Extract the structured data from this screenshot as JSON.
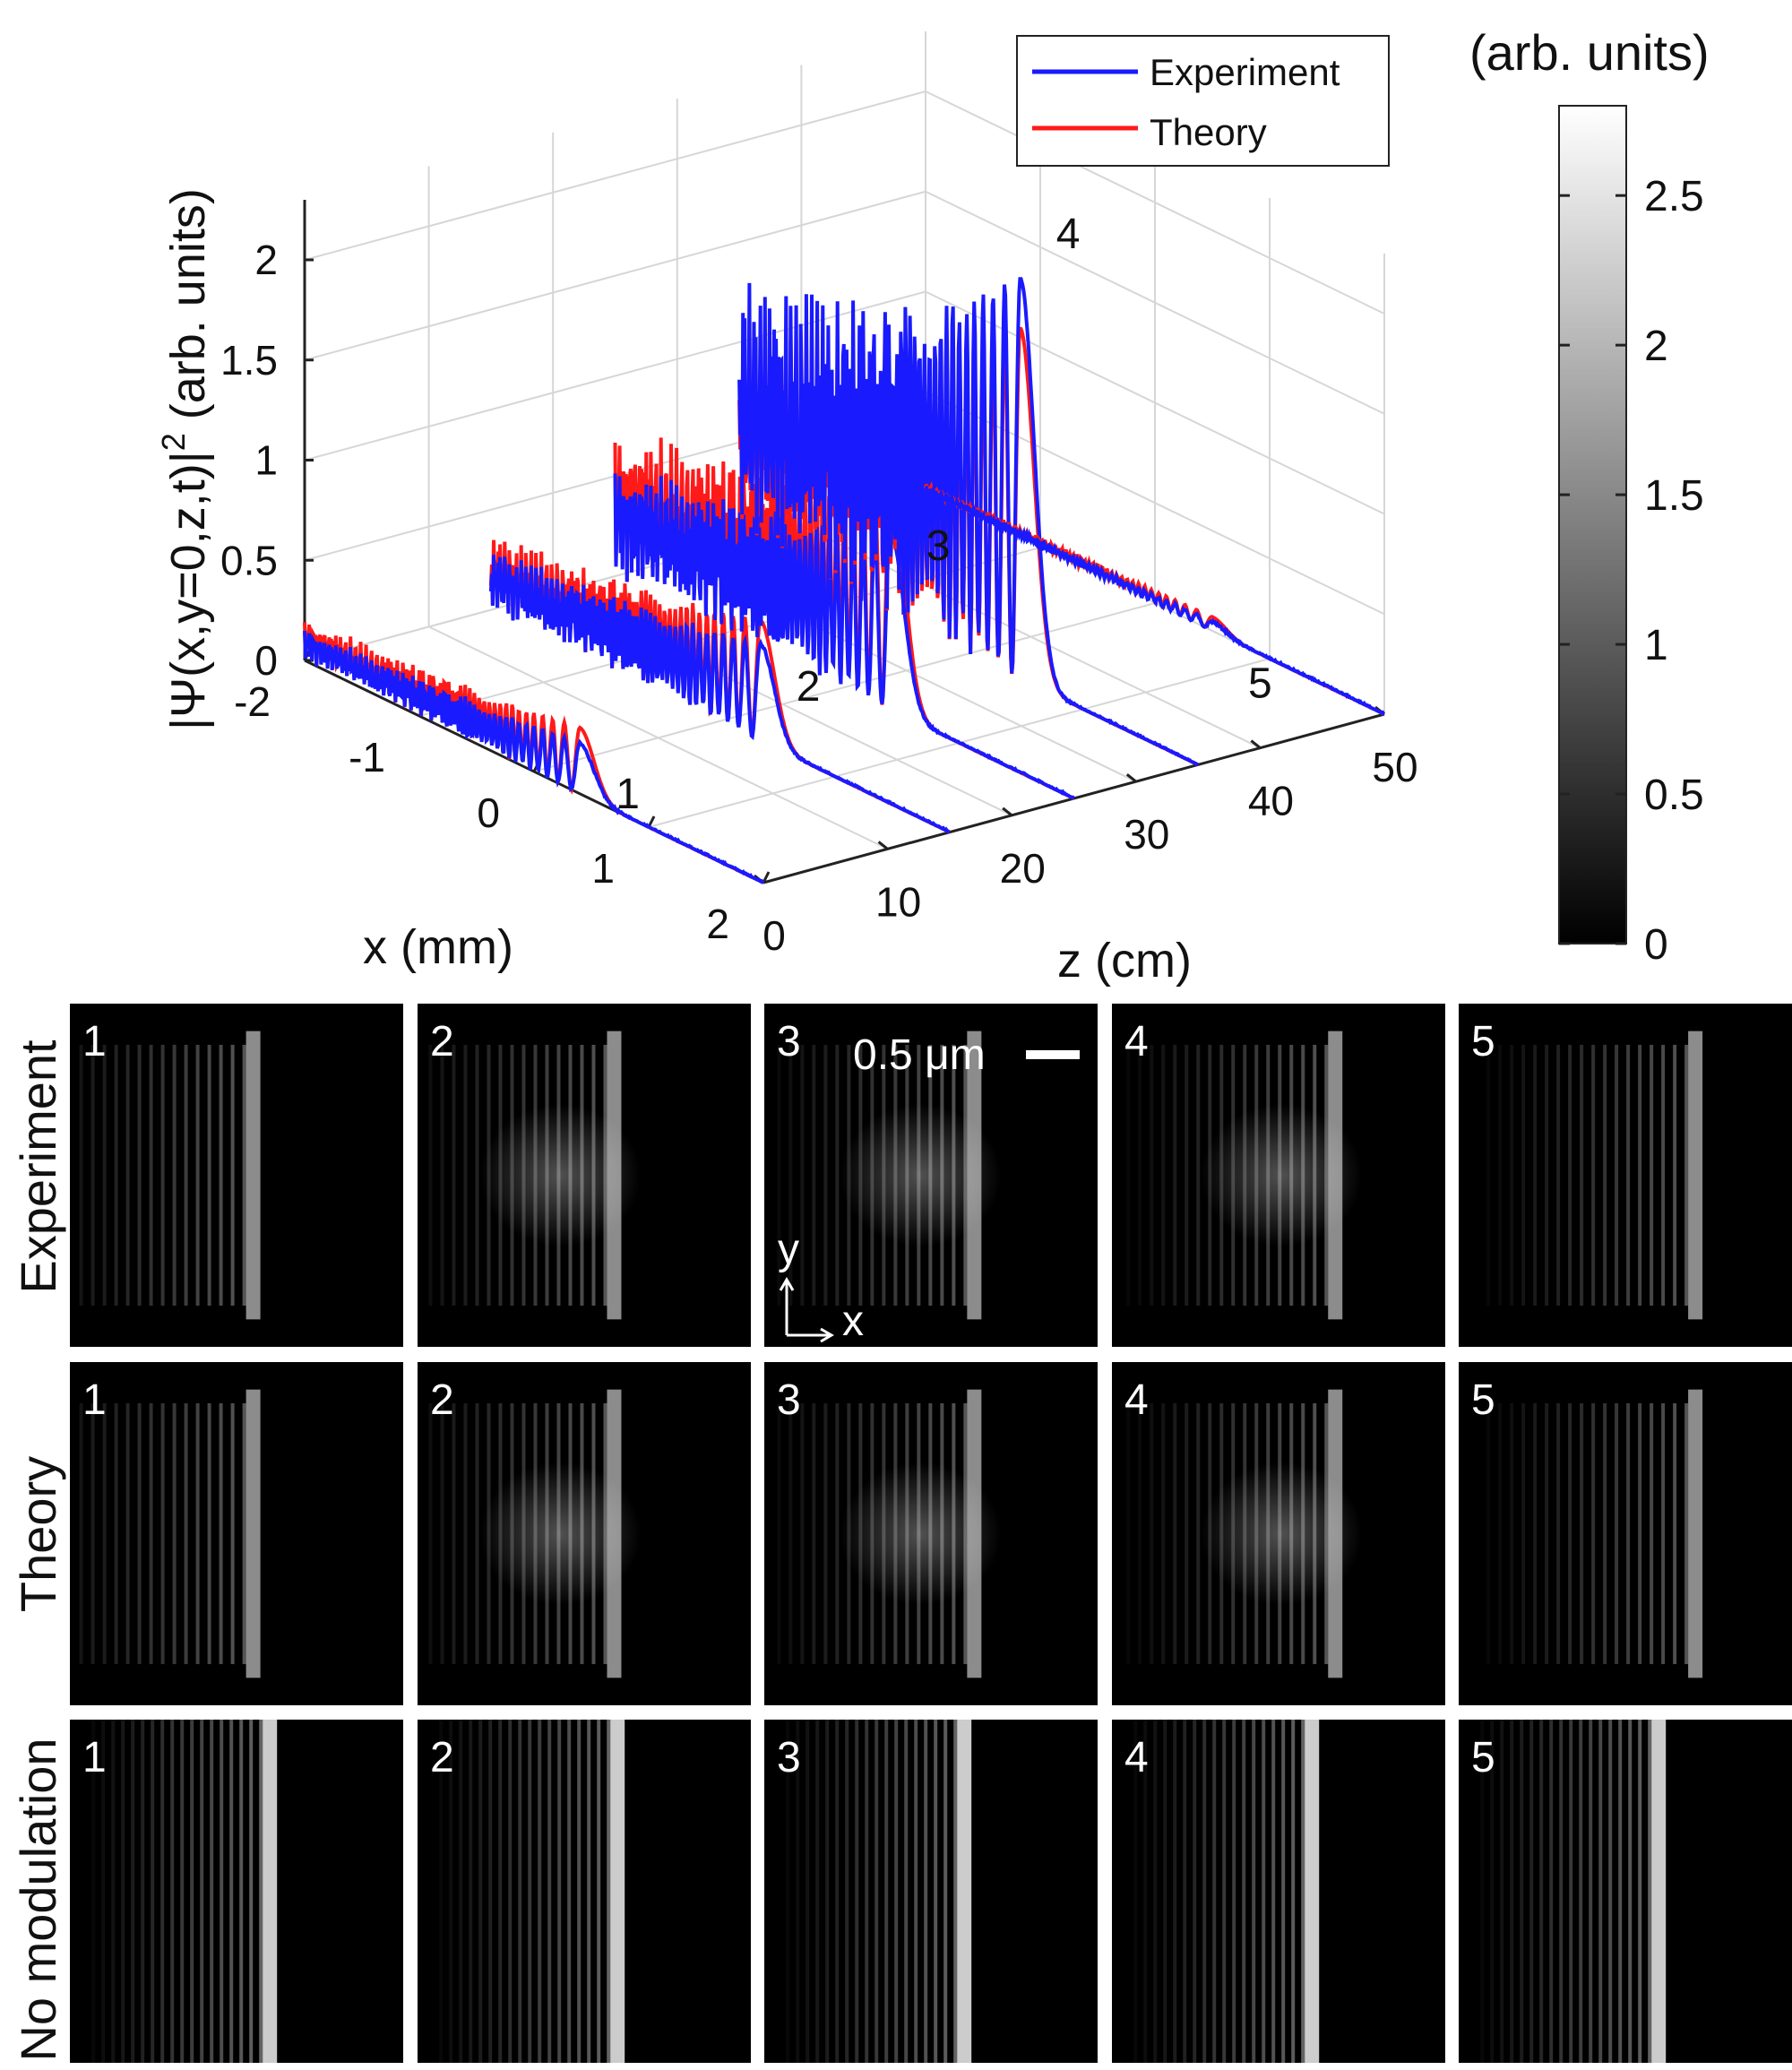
{
  "chart_data": [
    {
      "type": "line",
      "subtype": "3d-waterfall",
      "xlabel": "x (mm)",
      "ylabel": "z (cm)",
      "zlabel": "|Ψ(x,y=0,z,t)|² (arb. units)",
      "zlabel_parts": {
        "pre": "|Ψ(x,y=0,z,t)|",
        "sup": "2",
        "post": " (arb. units)"
      },
      "x_ticks": [
        "-2",
        "-1",
        "0",
        "1",
        "2"
      ],
      "y_ticks": [
        "0",
        "10",
        "20",
        "30",
        "40",
        "50"
      ],
      "z_ticks": [
        "0",
        "0.5",
        "1",
        "1.5",
        "2"
      ],
      "xlim": [
        -2,
        2
      ],
      "ylim": [
        0,
        50
      ],
      "zlim": [
        0,
        2.3
      ],
      "grid": true,
      "legend_position": "top-right",
      "series": [
        {
          "name": "Experiment",
          "color": "#1a1aff"
        },
        {
          "name": "Theory",
          "color": "#ff1a1a"
        }
      ],
      "slices": [
        {
          "label": "1",
          "z": 0,
          "theory_peak": 0.33,
          "experiment_peak": 0.27,
          "peak_x": 0.4
        },
        {
          "label": "2",
          "z": 15,
          "theory_peak": 0.6,
          "experiment_peak": 0.52,
          "peak_x": 0.35
        },
        {
          "label": "3",
          "z": 25,
          "theory_peak": 1.15,
          "experiment_peak": 0.95,
          "peak_x": 0.4
        },
        {
          "label": "4",
          "z": 35,
          "theory_peak": 1.75,
          "experiment_peak": 2.15,
          "peak_x": 0.45
        },
        {
          "label": "5",
          "z": 50,
          "theory_peak": 0.07,
          "experiment_peak": 0.05,
          "peak_x": 0.5
        }
      ]
    },
    {
      "type": "heatmap",
      "colorbar": {
        "title": "(arb. units)",
        "ticks": [
          "0",
          "0.5",
          "1",
          "1.5",
          "2",
          "2.5"
        ],
        "tick_values": [
          0,
          0.5,
          1,
          1.5,
          2,
          2.5
        ],
        "range": [
          0,
          2.8
        ]
      },
      "rows": [
        {
          "label": "Experiment",
          "panels": [
            "1",
            "2",
            "3",
            "4",
            "5"
          ]
        },
        {
          "label": "Theory",
          "panels": [
            "1",
            "2",
            "3",
            "4",
            "5"
          ]
        },
        {
          "label": "No modulation",
          "panels": [
            "1",
            "2",
            "3",
            "4",
            "5"
          ]
        }
      ],
      "scale_bar": "0.5 μm",
      "inset_axes": {
        "x": "x",
        "y": "y"
      }
    }
  ]
}
